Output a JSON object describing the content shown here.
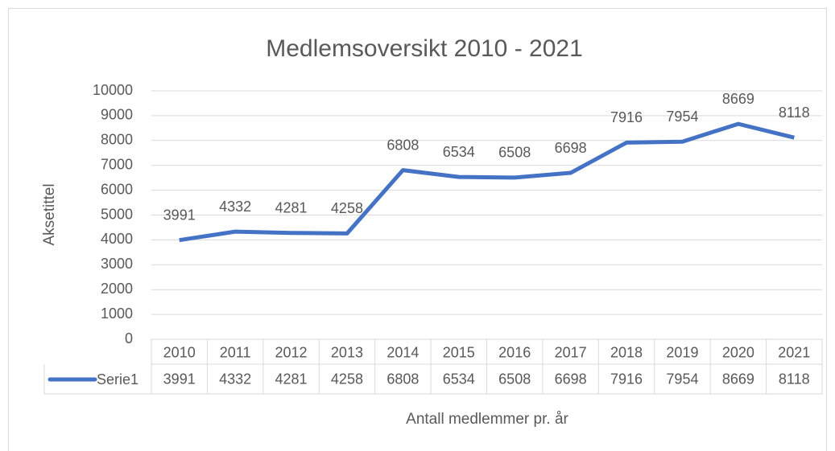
{
  "chart_data": {
    "type": "line",
    "title": "Medlemsoversikt 2010 - 2021",
    "x_label": "Antall medlemmer pr. år",
    "y_label": "Aksetittel",
    "categories": [
      "2010",
      "2011",
      "2012",
      "2013",
      "2014",
      "2015",
      "2016",
      "2017",
      "2018",
      "2019",
      "2020",
      "2021"
    ],
    "series": [
      {
        "name": "Serie1",
        "color": "#4472c4",
        "values": [
          3991,
          4332,
          4281,
          4258,
          6808,
          6534,
          6508,
          6698,
          7916,
          7954,
          8669,
          8118
        ]
      }
    ],
    "ylim": [
      0,
      10000
    ],
    "yticks": [
      0,
      1000,
      2000,
      3000,
      4000,
      5000,
      6000,
      7000,
      8000,
      9000,
      10000
    ],
    "grid": true,
    "data_labels": true,
    "data_table": true
  }
}
